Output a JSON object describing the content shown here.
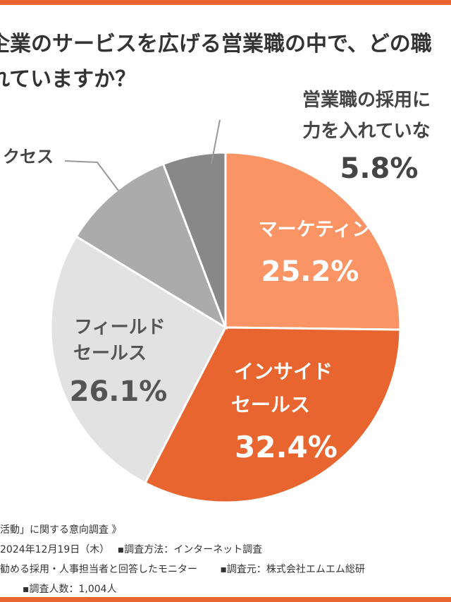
{
  "question": {
    "line1": "企業のサービスを広げる営業職の中で、どの職",
    "line2": "れていますか？"
  },
  "chart_data": {
    "type": "pie",
    "title": "",
    "slices": [
      {
        "label_lines": [
          "マーケティング"
        ],
        "value": 25.2,
        "value_text": "25.2%",
        "color": "#fa9465",
        "label_color": "#ffffff"
      },
      {
        "label_lines": [
          "インサイド",
          "セールス"
        ],
        "value": 32.4,
        "value_text": "32.4%",
        "color": "#e8652f",
        "label_color": "#ffffff"
      },
      {
        "label_lines": [
          "フィールド",
          "セールス"
        ],
        "value": 26.1,
        "value_text": "26.1%",
        "color": "#e2e2e2",
        "label_color": "#555555"
      },
      {
        "label_lines": [
          "カスタマーサクセス"
        ],
        "visible_label": "クセス",
        "value": 10.5,
        "value_text": "",
        "color": "#ababab",
        "label_color": "#444444"
      },
      {
        "label_lines": [
          "営業職の採用には",
          "力を入れていない"
        ],
        "visible_lines": [
          "営業職の採用に",
          "力を入れていな"
        ],
        "value": 5.8,
        "value_text": "5.8%",
        "color": "#888888",
        "label_color": "#444444"
      }
    ]
  },
  "footnotes": {
    "line1": "活動」に関する意向調査 》",
    "line2": "2024年12月19日（木）　 ▪調査方法：インターネット調査",
    "line3": "勧める採用・人事担当者と回答したモニター　　 ▪調査元：株式会社エムエム総研",
    "line4": "▪調査人数：1,004人"
  }
}
